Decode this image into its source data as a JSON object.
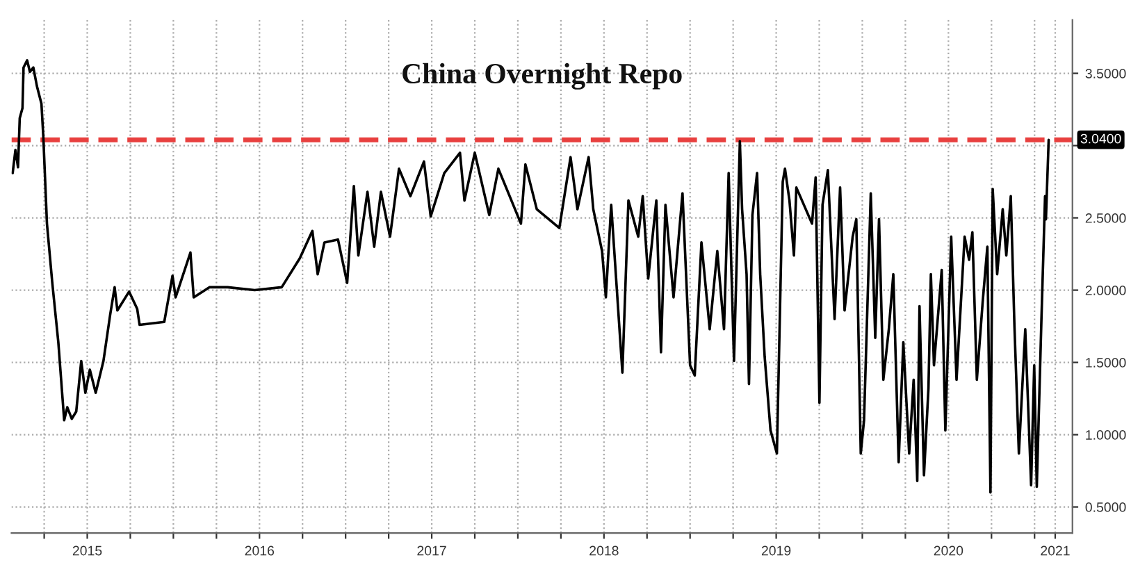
{
  "chart_data": {
    "type": "line",
    "title": "China Overnight Repo",
    "x": [
      2015.067,
      2015.083,
      2015.098,
      2015.108,
      2015.124,
      2015.13,
      2015.151,
      2015.167,
      2015.187,
      2015.208,
      2015.234,
      2015.245,
      2015.266,
      2015.297,
      2015.332,
      2015.366,
      2015.384,
      2015.41,
      2015.436,
      2015.465,
      2015.489,
      2015.515,
      2015.549,
      2015.594,
      2015.633,
      2015.659,
      2015.675,
      2015.743,
      2015.79,
      2015.804,
      2015.947,
      2015.995,
      2016.013,
      2016.099,
      2016.118,
      2016.209,
      2016.315,
      2016.472,
      2016.629,
      2016.734,
      2016.807,
      2016.838,
      2016.877,
      2016.956,
      2017.009,
      2017.048,
      2017.074,
      2017.127,
      2017.166,
      2017.205,
      2017.258,
      2017.31,
      2017.376,
      2017.455,
      2017.494,
      2017.573,
      2017.664,
      2017.69,
      2017.75,
      2017.834,
      2017.887,
      2018.018,
      2018.044,
      2018.11,
      2018.241,
      2018.306,
      2018.346,
      2018.411,
      2018.438,
      2018.489,
      2018.511,
      2018.542,
      2018.607,
      2018.642,
      2018.699,
      2018.725,
      2018.757,
      2018.804,
      2018.831,
      2018.857,
      2018.904,
      2018.956,
      2019.0,
      2019.027,
      2019.066,
      2019.114,
      2019.158,
      2019.197,
      2019.224,
      2019.255,
      2019.289,
      2019.302,
      2019.328,
      2019.342,
      2019.362,
      2019.389,
      2019.407,
      2019.433,
      2019.467,
      2019.504,
      2019.538,
      2019.551,
      2019.577,
      2019.603,
      2019.617,
      2019.708,
      2019.729,
      2019.751,
      2019.769,
      2019.8,
      2019.839,
      2019.871,
      2019.897,
      2019.944,
      2019.965,
      2019.991,
      2020.01,
      2020.049,
      2020.075,
      2020.097,
      2020.122,
      2020.154,
      2020.18,
      2020.211,
      2020.238,
      2020.272,
      2020.298,
      2020.319,
      2020.332,
      2020.358,
      2020.384,
      2020.398,
      2020.416,
      2020.461,
      2020.482,
      2020.516,
      2020.547,
      2020.594,
      2020.62,
      2020.639,
      2020.665,
      2020.699,
      2020.726,
      2020.744,
      2020.757,
      2020.783,
      2020.815,
      2020.836,
      2020.862,
      2020.883,
      2020.909,
      2020.946,
      2020.98,
      2020.998,
      2021.013,
      2021.04,
      2021.061,
      2021.066,
      2021.082
    ],
    "series": [
      {
        "color": "#000000",
        "values": [
          2.81,
          2.97,
          2.85,
          3.19,
          3.26,
          3.54,
          3.59,
          3.51,
          3.54,
          3.41,
          3.29,
          3.06,
          2.46,
          2.05,
          1.64,
          1.1,
          1.19,
          1.11,
          1.16,
          1.51,
          1.29,
          1.45,
          1.29,
          1.51,
          1.83,
          2.02,
          1.86,
          1.99,
          1.87,
          1.76,
          1.78,
          2.1,
          1.95,
          2.26,
          1.95,
          2.02,
          2.02,
          2.0,
          2.02,
          2.22,
          2.41,
          2.11,
          2.33,
          2.35,
          2.05,
          2.72,
          2.24,
          2.68,
          2.3,
          2.68,
          2.37,
          2.84,
          2.65,
          2.89,
          2.51,
          2.81,
          2.95,
          2.62,
          2.95,
          2.52,
          2.84,
          2.46,
          2.87,
          2.56,
          2.43,
          2.92,
          2.56,
          2.92,
          2.56,
          2.27,
          1.95,
          2.59,
          1.43,
          2.62,
          2.37,
          2.65,
          2.08,
          2.62,
          1.57,
          2.59,
          1.95,
          2.67,
          1.48,
          1.41,
          2.33,
          1.73,
          2.27,
          1.73,
          2.81,
          1.51,
          3.03,
          2.56,
          2.11,
          1.35,
          2.52,
          2.81,
          2.11,
          1.54,
          1.03,
          0.87,
          2.75,
          2.84,
          2.62,
          2.24,
          2.71,
          2.46,
          2.78,
          1.22,
          2.59,
          2.83,
          1.8,
          2.71,
          1.86,
          2.37,
          2.49,
          0.87,
          1.1,
          2.67,
          1.67,
          2.49,
          1.38,
          1.73,
          2.11,
          0.81,
          1.64,
          0.87,
          1.38,
          0.68,
          1.89,
          0.72,
          1.32,
          2.11,
          1.48,
          2.14,
          1.03,
          2.37,
          1.38,
          2.37,
          2.21,
          2.4,
          1.38,
          1.92,
          2.3,
          0.6,
          2.7,
          2.11,
          2.56,
          2.24,
          2.65,
          1.76,
          0.87,
          1.73,
          0.65,
          1.48,
          0.64,
          1.8,
          2.65,
          2.49,
          3.04
        ]
      }
    ],
    "xlim": [
      2015.06,
      2021.22
    ],
    "xticks": [
      {
        "value": 2015.25,
        "label": null
      },
      {
        "value": 2015.5,
        "label": "2015"
      },
      {
        "value": 2015.75,
        "label": null
      },
      {
        "value": 2016,
        "label": null
      },
      {
        "value": 2016.25,
        "label": null
      },
      {
        "value": 2016.5,
        "label": "2016"
      },
      {
        "value": 2016.75,
        "label": null
      },
      {
        "value": 2017,
        "label": null
      },
      {
        "value": 2017.25,
        "label": null
      },
      {
        "value": 2017.5,
        "label": "2017"
      },
      {
        "value": 2017.75,
        "label": null
      },
      {
        "value": 2018,
        "label": null
      },
      {
        "value": 2018.25,
        "label": null
      },
      {
        "value": 2018.5,
        "label": "2018"
      },
      {
        "value": 2018.75,
        "label": null
      },
      {
        "value": 2019,
        "label": null
      },
      {
        "value": 2019.25,
        "label": null
      },
      {
        "value": 2019.5,
        "label": "2019"
      },
      {
        "value": 2019.75,
        "label": null
      },
      {
        "value": 2020,
        "label": null
      },
      {
        "value": 2020.25,
        "label": null
      },
      {
        "value": 2020.5,
        "label": "2020"
      },
      {
        "value": 2020.75,
        "label": null
      },
      {
        "value": 2021,
        "label": null
      },
      {
        "value": 2021.12,
        "label": "2021"
      }
    ],
    "ylim": [
      0.32,
      3.87
    ],
    "yticks": [
      {
        "value": 0.5,
        "label": "0.5000"
      },
      {
        "value": 1.0,
        "label": "1.0000"
      },
      {
        "value": 1.5,
        "label": "1.5000"
      },
      {
        "value": 2.0,
        "label": "2.0000"
      },
      {
        "value": 2.5,
        "label": "2.5000"
      },
      {
        "value": 3.0,
        "label": null
      },
      {
        "value": 3.5,
        "label": "3.5000"
      }
    ],
    "ref_lines": [
      {
        "axis": "y",
        "value": 3.04,
        "label": "3.0400",
        "color": "#e8403f",
        "line_style": "dashed"
      }
    ],
    "grid": true,
    "legend": false,
    "marker": "none",
    "line_style": "solid"
  }
}
